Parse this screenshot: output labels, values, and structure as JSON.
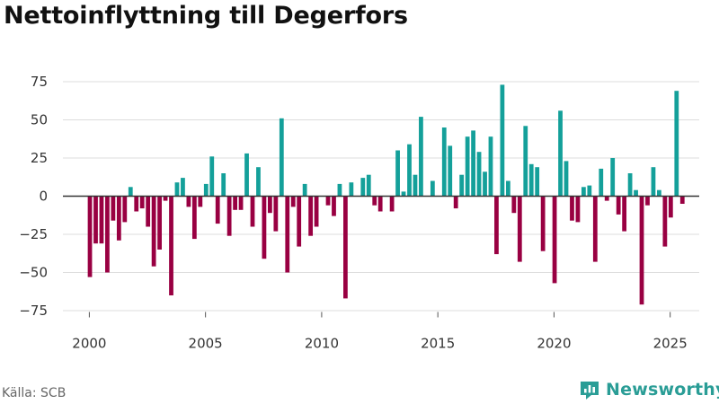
{
  "title": "Nettoinflyttning till Degerfors",
  "source": "Källa: SCB",
  "brand": {
    "name": "Newsworthy",
    "icon": "bar-chart-logo-icon",
    "color": "#2a9d96"
  },
  "chart_data": {
    "type": "bar",
    "title": "Nettoinflyttning till Degerfors",
    "xlabel": "",
    "ylabel": "",
    "frequency": "quarterly",
    "x_start": 2000.0,
    "x_step": 0.25,
    "xlim": [
      1999.25,
      2026.25
    ],
    "ylim": [
      -80,
      85
    ],
    "yticks": [
      -75,
      -50,
      -25,
      0,
      25,
      50,
      75
    ],
    "ytick_labels": [
      "−75",
      "−50",
      "−25",
      "0",
      "25",
      "50",
      "75"
    ],
    "xticks": [
      2000,
      2005,
      2010,
      2015,
      2020,
      2025
    ],
    "xtick_labels": [
      "2000",
      "2005",
      "2010",
      "2015",
      "2020",
      "2025"
    ],
    "grid": true,
    "colors": {
      "positive": "#14a09a",
      "negative": "#990042",
      "grid": "#dddddd",
      "zero_line": "#333333"
    },
    "values": [
      -53,
      -31,
      -31,
      -50,
      -16,
      -29,
      -17,
      6,
      -10,
      -8,
      -20,
      -46,
      -35,
      -3,
      -65,
      9,
      12,
      -7,
      -28,
      -7,
      8,
      26,
      -18,
      15,
      -26,
      -9,
      -9,
      28,
      -20,
      19,
      -41,
      -11,
      -23,
      51,
      -50,
      -7,
      -33,
      8,
      -26,
      -20,
      0,
      -6,
      -13,
      8,
      -67,
      9,
      0,
      12,
      14,
      -6,
      -10,
      0,
      -10,
      30,
      3,
      34,
      14,
      52,
      0,
      10,
      0,
      45,
      33,
      -8,
      14,
      39,
      43,
      29,
      16,
      39,
      -38,
      73,
      10,
      -11,
      -43,
      46,
      21,
      19,
      -36,
      0,
      -57,
      56,
      23,
      -16,
      -17,
      6,
      7,
      -43,
      18,
      -3,
      25,
      -12,
      -23,
      15,
      4,
      -71,
      -6,
      19,
      4,
      -33,
      -14,
      69,
      -5
    ]
  }
}
